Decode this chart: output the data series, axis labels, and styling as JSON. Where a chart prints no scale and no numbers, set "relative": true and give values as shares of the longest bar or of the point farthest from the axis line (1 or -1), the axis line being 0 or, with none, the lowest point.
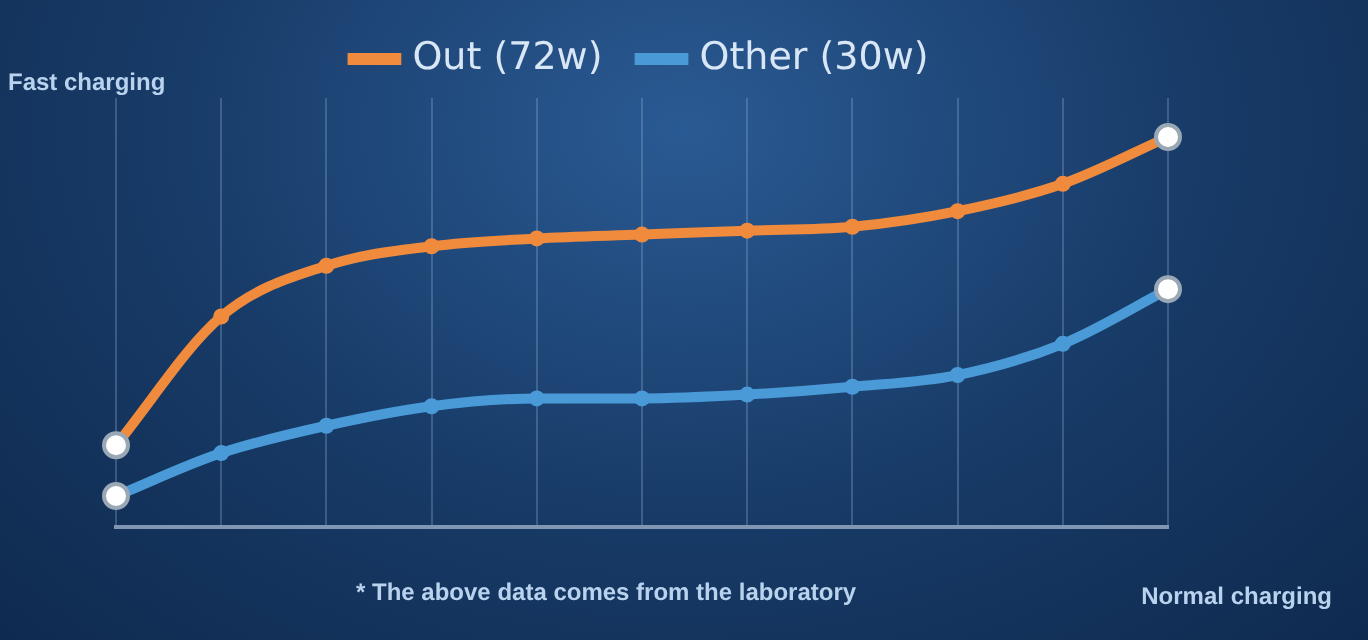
{
  "chart_data": {
    "type": "line",
    "relative": true,
    "xlabel": "Normal charging",
    "ylabel": "Fast charging",
    "annotations": [
      "* The above data comes from the laboratory"
    ],
    "categories": [
      null,
      null,
      null,
      null,
      null,
      null,
      null,
      null,
      null,
      null,
      null
    ],
    "series": [
      {
        "name": "Out (72w)",
        "color": "#f08a3c",
        "values": [
          0.21,
          0.54,
          0.67,
          0.72,
          0.74,
          0.75,
          0.76,
          0.77,
          0.81,
          0.88,
          1
        ]
      },
      {
        "name": "Other (30w)",
        "color": "#4a9ad8",
        "values": [
          0.08,
          0.19,
          0.26,
          0.31,
          0.33,
          0.33,
          0.34,
          0.36,
          0.39,
          0.47,
          0.61
        ]
      }
    ],
    "legend": "top",
    "grid": true,
    "marker": "circle",
    "line_style": "solid"
  }
}
